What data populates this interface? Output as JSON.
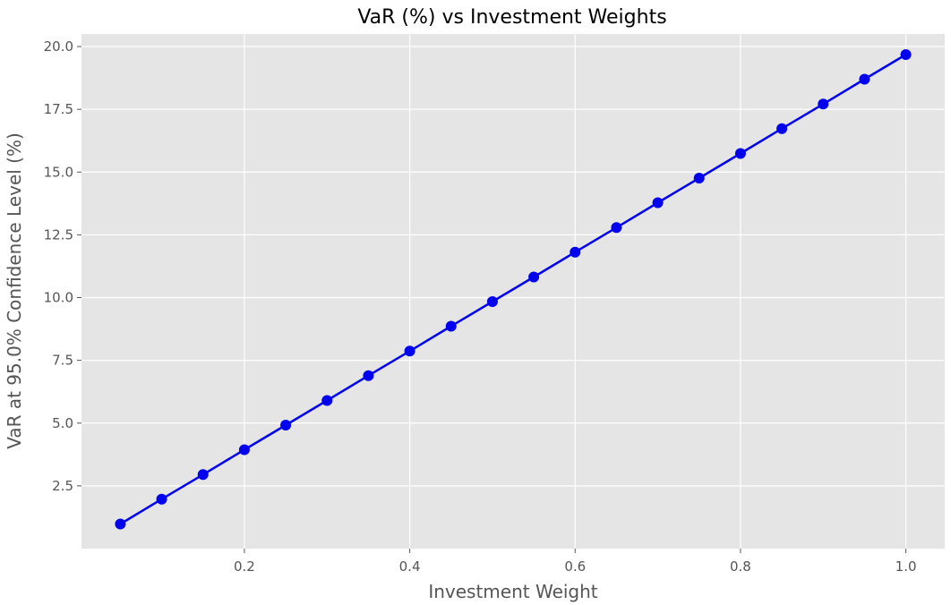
{
  "chart_data": {
    "type": "line",
    "title": "VaR (%) vs Investment Weights",
    "xlabel": "Investment Weight",
    "ylabel": "VaR at 95.0% Confidence Level (%)",
    "xlim": [
      0.003,
      1.047
    ],
    "ylim": [
      0.0,
      20.5
    ],
    "xticks": [
      0.2,
      0.4,
      0.6,
      0.8,
      1.0
    ],
    "xtick_labels": [
      "0.2",
      "0.4",
      "0.6",
      "0.8",
      "1.0"
    ],
    "yticks": [
      2.5,
      5.0,
      7.5,
      10.0,
      12.5,
      15.0,
      17.5,
      20.0
    ],
    "ytick_labels": [
      "2.5",
      "5.0",
      "7.5",
      "10.0",
      "12.5",
      "15.0",
      "17.5",
      "20.0"
    ],
    "grid": true,
    "style": {
      "background": "#e5e5e5",
      "grid_color": "#ffffff",
      "line_color": "#0000ee",
      "marker_color": "#0000ee"
    },
    "series": [
      {
        "x": [
          0.05,
          0.1,
          0.15,
          0.2,
          0.25,
          0.3,
          0.35,
          0.4,
          0.45,
          0.5,
          0.55,
          0.6,
          0.65,
          0.7,
          0.75,
          0.8,
          0.85,
          0.9,
          0.95,
          1.0
        ],
        "values": [
          0.98,
          1.97,
          2.95,
          3.94,
          4.92,
          5.9,
          6.89,
          7.87,
          8.86,
          9.84,
          10.82,
          11.81,
          12.79,
          13.78,
          14.76,
          15.74,
          16.73,
          17.71,
          18.7,
          19.68
        ]
      }
    ]
  }
}
